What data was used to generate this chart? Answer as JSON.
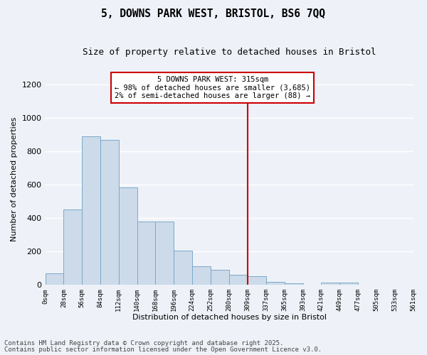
{
  "title": "5, DOWNS PARK WEST, BRISTOL, BS6 7QQ",
  "subtitle": "Size of property relative to detached houses in Bristol",
  "xlabel": "Distribution of detached houses by size in Bristol",
  "ylabel": "Number of detached properties",
  "bar_color": "#ccdaea",
  "bar_edge_color": "#7aaac8",
  "background_color": "#eef2f8",
  "vline_x": 309,
  "vline_color": "#cc0000",
  "annotation_title": "5 DOWNS PARK WEST: 315sqm",
  "annotation_line1": "← 98% of detached houses are smaller (3,685)",
  "annotation_line2": "2% of semi-detached houses are larger (88) →",
  "annotation_box_color": "#cc0000",
  "footnote1": "Contains HM Land Registry data © Crown copyright and database right 2025.",
  "footnote2": "Contains public sector information licensed under the Open Government Licence v3.0.",
  "bin_edges": [
    0,
    28,
    56,
    84,
    112,
    140,
    168,
    196,
    224,
    252,
    280,
    309,
    337,
    365,
    393,
    421,
    449,
    477,
    505,
    533,
    561
  ],
  "bar_heights": [
    70,
    450,
    890,
    870,
    585,
    380,
    380,
    205,
    110,
    90,
    60,
    50,
    18,
    8,
    0,
    12,
    12,
    0,
    0,
    0
  ],
  "ylim": [
    0,
    1270
  ],
  "yticks": [
    0,
    200,
    400,
    600,
    800,
    1000,
    1200
  ],
  "grid_color": "#ffffff",
  "title_fontsize": 10.5,
  "subtitle_fontsize": 9,
  "axis_label_fontsize": 8,
  "tick_label_fontsize": 6.5,
  "annotation_fontsize": 7.5,
  "footnote_fontsize": 6.5
}
